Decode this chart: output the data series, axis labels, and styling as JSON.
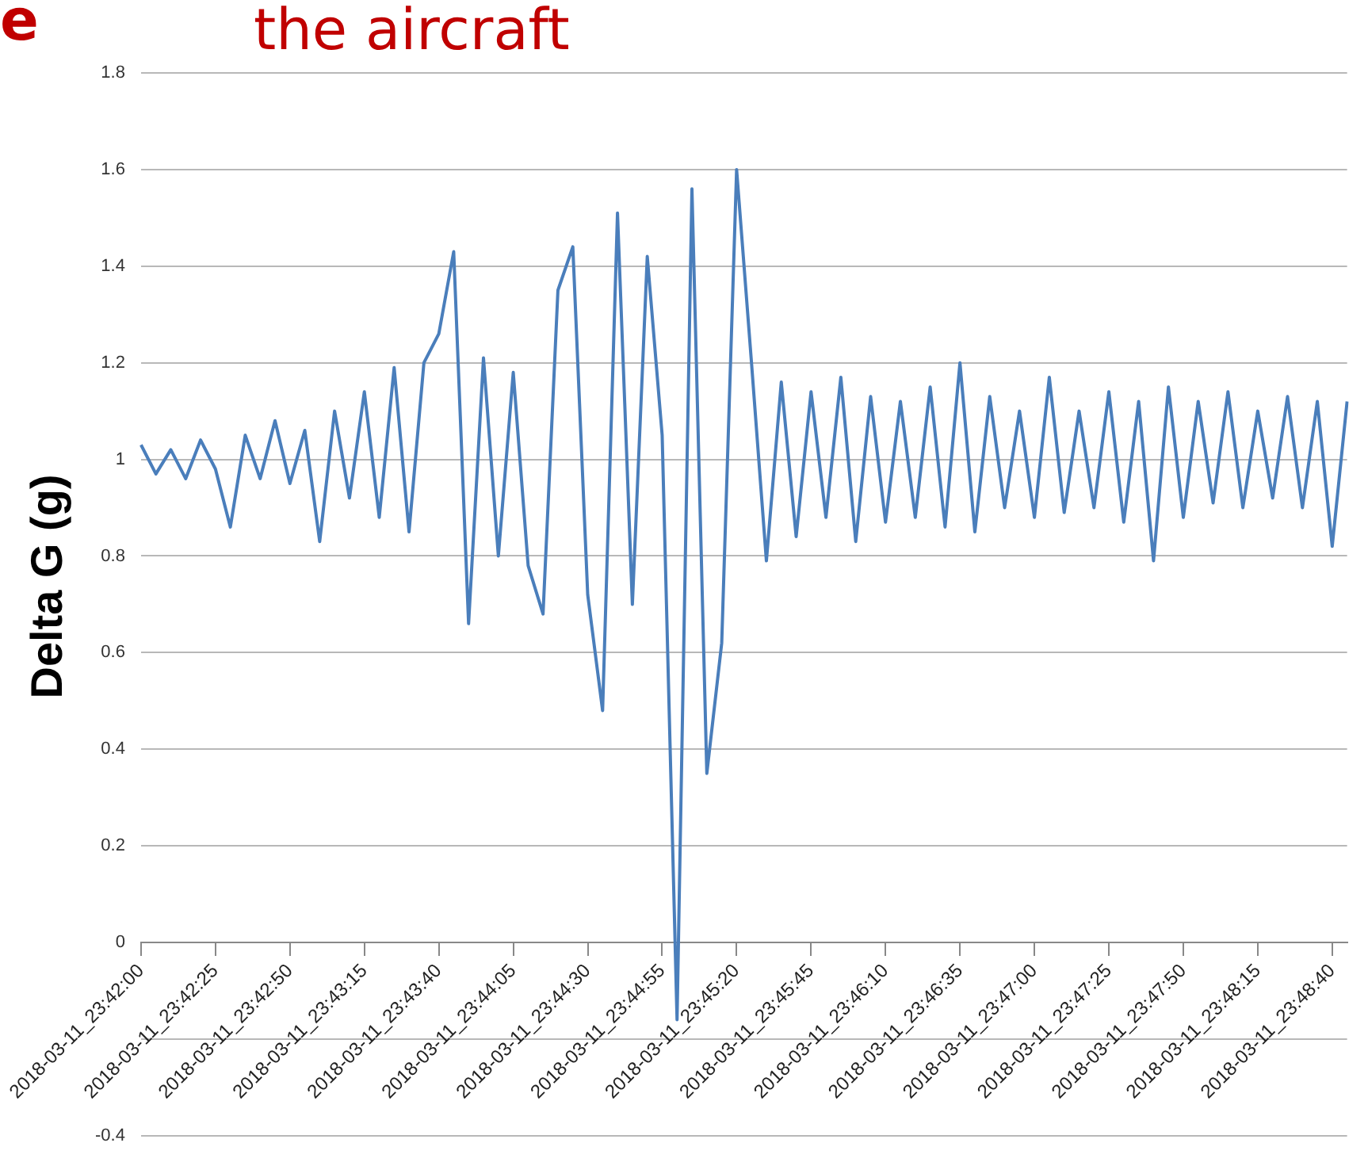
{
  "chart_data": {
    "type": "line",
    "title": "the aircraft",
    "annotations": [
      "e"
    ],
    "ylabel": "Delta G (g)",
    "categories": [
      "2018-03-11_23:42:00",
      null,
      null,
      null,
      null,
      "2018-03-11_23:42:25",
      null,
      null,
      null,
      null,
      "2018-03-11_23:42:50",
      null,
      null,
      null,
      null,
      "2018-03-11_23:43:15",
      null,
      null,
      null,
      null,
      "2018-03-11_23:43:40",
      null,
      null,
      null,
      null,
      "2018-03-11_23:44:05",
      null,
      null,
      null,
      null,
      "2018-03-11_23:44:30",
      null,
      null,
      null,
      null,
      "2018-03-11_23:44:55",
      null,
      null,
      null,
      null,
      "2018-03-11_23:45:20",
      null,
      null,
      null,
      null,
      "2018-03-11_23:45:45",
      null,
      null,
      null,
      null,
      "2018-03-11_23:46:10",
      null,
      null,
      null,
      null,
      "2018-03-11_23:46:35",
      null,
      null,
      null,
      null,
      "2018-03-11_23:47:00",
      null,
      null,
      null,
      null,
      "2018-03-11_23:47:25",
      null,
      null,
      null,
      null,
      "2018-03-11_23:47:50",
      null,
      null,
      null,
      null,
      "2018-03-11_23:48:15",
      null,
      null,
      null,
      null,
      "2018-03-11_23:48:40",
      null
    ],
    "series": [
      {
        "color": "#4a7ebb",
        "values": [
          1.03,
          0.97,
          1.02,
          0.96,
          1.04,
          0.98,
          0.86,
          1.05,
          0.96,
          1.08,
          0.95,
          1.06,
          0.83,
          1.1,
          0.92,
          1.14,
          0.88,
          1.19,
          0.85,
          1.2,
          1.26,
          1.43,
          0.66,
          1.21,
          0.8,
          1.18,
          0.78,
          0.68,
          1.35,
          1.44,
          0.72,
          0.48,
          1.51,
          0.7,
          1.42,
          1.05,
          -0.16,
          1.56,
          0.35,
          0.62,
          1.6,
          1.2,
          0.79,
          1.16,
          0.84,
          1.14,
          0.88,
          1.17,
          0.83,
          1.13,
          0.87,
          1.12,
          0.88,
          1.15,
          0.86,
          1.2,
          0.85,
          1.13,
          0.9,
          1.1,
          0.88,
          1.17,
          0.89,
          1.1,
          0.9,
          1.14,
          0.87,
          1.12,
          0.79,
          1.15,
          0.88,
          1.12,
          0.91,
          1.14,
          0.9,
          1.1,
          0.92,
          1.13,
          0.9,
          1.12,
          0.82,
          1.12
        ]
      }
    ],
    "ylim": [
      -0.4,
      1.8
    ],
    "yticks": [
      -0.4,
      {
        "value": -0.2,
        "label": null
      },
      0,
      0.2,
      0.4,
      0.6,
      0.8,
      1,
      1.2,
      1.4,
      1.6,
      1.8
    ],
    "grid": "y",
    "marker": "none",
    "line_style": "solid",
    "legend": false
  }
}
